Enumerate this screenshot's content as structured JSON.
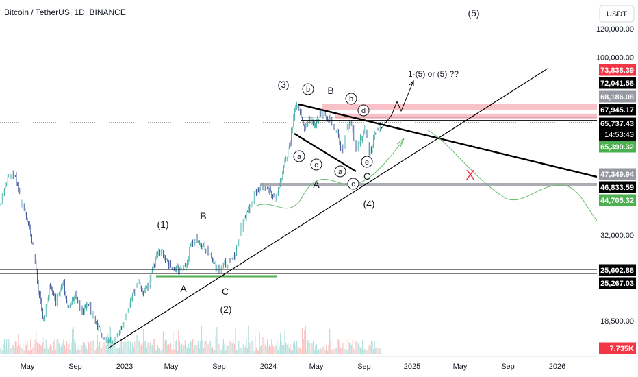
{
  "header": {
    "title": "Bitcoin / TetherUS, 1D, BINANCE",
    "currency": "USDT"
  },
  "colors": {
    "candle_up": "#26a69a",
    "candle_down": "#1e3a8a",
    "red_zone": "#f7b3bc",
    "tag_red": "#f23645",
    "tag_black": "#000000",
    "tag_gray": "#9598a1",
    "tag_green": "#4caf50",
    "support_green": "#4caf50",
    "path_green": "#66bb6a",
    "path_red": "#f23645"
  },
  "chart_data": {
    "type": "candlestick",
    "title": "Bitcoin / TetherUS, 1D, BINANCE",
    "y_scale": "log",
    "y_ticks": [
      {
        "label": "120,000.00",
        "value": 120000
      },
      {
        "label": "100,000.00",
        "value": 100000
      },
      {
        "label": "32,000.00",
        "value": 32000
      },
      {
        "label": "18,500.00",
        "value": 18500
      }
    ],
    "x_ticks": [
      "May",
      "Sep",
      "2023",
      "May",
      "Sep",
      "2024",
      "May",
      "Sep",
      "2025",
      "May",
      "Sep",
      "2026"
    ],
    "price_tags": [
      {
        "label": "73,838.39",
        "value": 73838.39,
        "style": "red"
      },
      {
        "label": "72,041.58",
        "value": 72041.58,
        "style": "black"
      },
      {
        "label": "68,186.08",
        "value": 68186.08,
        "style": "gray"
      },
      {
        "label": "67,945.17",
        "value": 67945.17,
        "style": "black"
      },
      {
        "label": "65,737.43",
        "value": 65737.43,
        "style": "black",
        "sub": "14:53:43"
      },
      {
        "label": "65,399.32",
        "value": 65399.32,
        "style": "green"
      },
      {
        "label": "47,349.94",
        "value": 47349.94,
        "style": "gray"
      },
      {
        "label": "46,833.59",
        "value": 46833.59,
        "style": "black"
      },
      {
        "label": "44,705.32",
        "value": 44705.32,
        "style": "green"
      },
      {
        "label": "25,602.88",
        "value": 25602.88,
        "style": "black"
      },
      {
        "label": "25,267.03",
        "value": 25267.03,
        "style": "black"
      },
      {
        "label": "7.735K",
        "value": 7735,
        "style": "red"
      }
    ],
    "wave_labels": [
      {
        "text": "(5)"
      },
      {
        "text": "(3)"
      },
      {
        "text": "B"
      },
      {
        "text": "(1)"
      },
      {
        "text": "B"
      },
      {
        "text": "A"
      },
      {
        "text": "C"
      },
      {
        "text": "(2)"
      },
      {
        "text": "A"
      },
      {
        "text": "C"
      },
      {
        "text": "(4)"
      }
    ],
    "circled_labels": [
      "b",
      "b",
      "d",
      "a",
      "c",
      "a",
      "c",
      "e"
    ],
    "annotations": [
      "1-(5) or (5) ??",
      "X"
    ]
  }
}
